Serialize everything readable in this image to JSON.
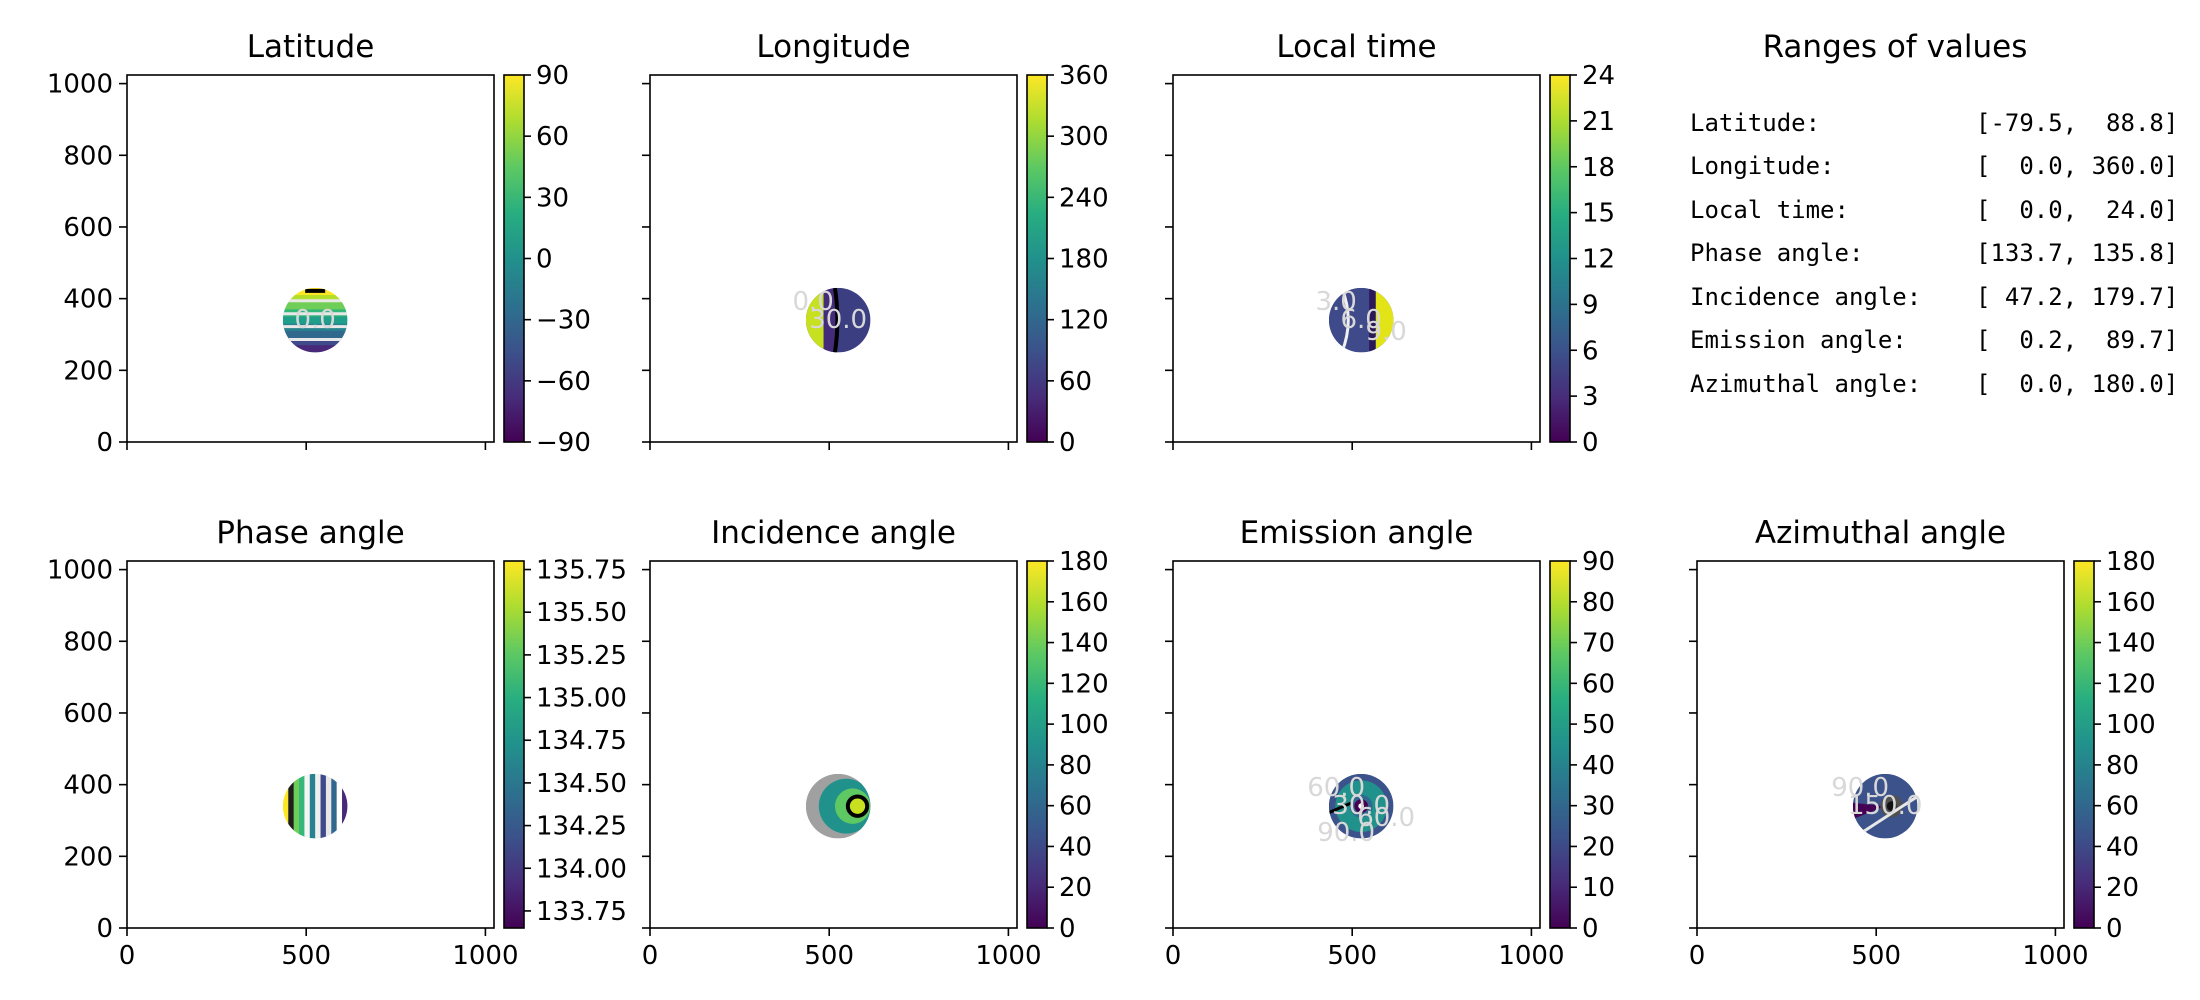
{
  "figure": {
    "ranges_title": "Ranges of values",
    "ranges": [
      {
        "label": "Latitude:",
        "value": "[-79.5,  88.8]"
      },
      {
        "label": "Longitude:",
        "value": "[  0.0, 360.0]"
      },
      {
        "label": "Local time:",
        "value": "[  0.0,  24.0]"
      },
      {
        "label": "Phase angle:",
        "value": "[133.7, 135.8]"
      },
      {
        "label": "Incidence angle:",
        "value": "[ 47.2, 179.7]"
      },
      {
        "label": "Emission angle:",
        "value": "[  0.2,  89.7]"
      },
      {
        "label": "Azimuthal angle:",
        "value": "[  0.0, 180.0]"
      }
    ]
  },
  "chart_data": [
    {
      "type": "heatmap",
      "title": "Latitude",
      "xlim": [
        0,
        1024
      ],
      "ylim": [
        0,
        1024
      ],
      "xticks": [
        0,
        500,
        1000
      ],
      "yticks": [
        0,
        200,
        400,
        600,
        800,
        1000
      ],
      "disk": {
        "center": [
          525,
          340
        ],
        "radius": 90
      },
      "colorbar": {
        "min": -90,
        "max": 90,
        "ticks": [
          90,
          60,
          30,
          0,
          -30,
          -60,
          -90
        ],
        "labels": [
          "90",
          "60",
          "30",
          "0",
          "−30",
          "−60",
          "−90"
        ]
      },
      "contour_labels": [
        "0.0"
      ]
    },
    {
      "type": "heatmap",
      "title": "Longitude",
      "xlim": [
        0,
        1024
      ],
      "ylim": [
        0,
        1024
      ],
      "xticks": [
        0,
        500,
        1000
      ],
      "yticks": [
        0,
        200,
        400,
        600,
        800,
        1000
      ],
      "disk": {
        "center": [
          525,
          340
        ],
        "radius": 90
      },
      "colorbar": {
        "min": 0,
        "max": 360,
        "ticks": [
          360,
          300,
          240,
          180,
          120,
          60,
          0
        ],
        "labels": [
          "360",
          "300",
          "240",
          "180",
          "120",
          "60",
          "0"
        ]
      },
      "contour_labels": [
        "30.0",
        "0.0"
      ]
    },
    {
      "type": "heatmap",
      "title": "Local time",
      "xlim": [
        0,
        1024
      ],
      "ylim": [
        0,
        1024
      ],
      "xticks": [
        0,
        500,
        1000
      ],
      "yticks": [
        0,
        200,
        400,
        600,
        800,
        1000
      ],
      "disk": {
        "center": [
          525,
          340
        ],
        "radius": 90
      },
      "colorbar": {
        "min": 0,
        "max": 24,
        "ticks": [
          24,
          21,
          18,
          15,
          12,
          9,
          6,
          3,
          0
        ],
        "labels": [
          "24",
          "21",
          "18",
          "15",
          "12",
          "9",
          "6",
          "3",
          "0"
        ]
      },
      "contour_labels": [
        "6.0",
        "3.0",
        "9.0"
      ]
    },
    {
      "type": "heatmap",
      "title": "Phase angle",
      "xlim": [
        0,
        1024
      ],
      "ylim": [
        0,
        1024
      ],
      "xticks": [
        0,
        500,
        1000
      ],
      "yticks": [
        0,
        200,
        400,
        600,
        800,
        1000
      ],
      "disk": {
        "center": [
          525,
          340
        ],
        "radius": 90
      },
      "colorbar": {
        "min": 133.65,
        "max": 135.8,
        "ticks": [
          135.75,
          135.5,
          135.25,
          135.0,
          134.75,
          134.5,
          134.25,
          134.0,
          133.75
        ],
        "labels": [
          "135.75",
          "135.50",
          "135.25",
          "135.00",
          "134.75",
          "134.50",
          "134.25",
          "134.00",
          "133.75"
        ]
      },
      "contour_labels": []
    },
    {
      "type": "heatmap",
      "title": "Incidence angle",
      "xlim": [
        0,
        1024
      ],
      "ylim": [
        0,
        1024
      ],
      "xticks": [
        0,
        500,
        1000
      ],
      "yticks": [
        0,
        200,
        400,
        600,
        800,
        1000
      ],
      "disk": {
        "center": [
          525,
          340
        ],
        "radius": 90
      },
      "colorbar": {
        "min": 0,
        "max": 180,
        "ticks": [
          180,
          160,
          140,
          120,
          100,
          80,
          60,
          40,
          20,
          0
        ],
        "labels": [
          "180",
          "160",
          "140",
          "120",
          "100",
          "80",
          "60",
          "40",
          "20",
          "0"
        ]
      },
      "contour_labels": []
    },
    {
      "type": "heatmap",
      "title": "Emission angle",
      "xlim": [
        0,
        1024
      ],
      "ylim": [
        0,
        1024
      ],
      "xticks": [
        0,
        500,
        1000
      ],
      "yticks": [
        0,
        200,
        400,
        600,
        800,
        1000
      ],
      "disk": {
        "center": [
          525,
          340
        ],
        "radius": 90
      },
      "colorbar": {
        "min": 0,
        "max": 90,
        "ticks": [
          90,
          80,
          70,
          60,
          50,
          40,
          30,
          20,
          10,
          0
        ],
        "labels": [
          "90",
          "80",
          "70",
          "60",
          "50",
          "40",
          "30",
          "20",
          "10",
          "0"
        ]
      },
      "contour_labels": [
        "30.0",
        "60.0",
        "60.0",
        "90.0"
      ]
    },
    {
      "type": "heatmap",
      "title": "Azimuthal angle",
      "xlim": [
        0,
        1024
      ],
      "ylim": [
        0,
        1024
      ],
      "xticks": [
        0,
        500,
        1000
      ],
      "yticks": [
        0,
        200,
        400,
        600,
        800,
        1000
      ],
      "disk": {
        "center": [
          525,
          340
        ],
        "radius": 90
      },
      "colorbar": {
        "min": 0,
        "max": 180,
        "ticks": [
          180,
          160,
          140,
          120,
          100,
          80,
          60,
          40,
          20,
          0
        ],
        "labels": [
          "180",
          "160",
          "140",
          "120",
          "100",
          "80",
          "60",
          "40",
          "20",
          "0"
        ]
      },
      "contour_labels": [
        "150.0",
        "90.0"
      ]
    }
  ]
}
